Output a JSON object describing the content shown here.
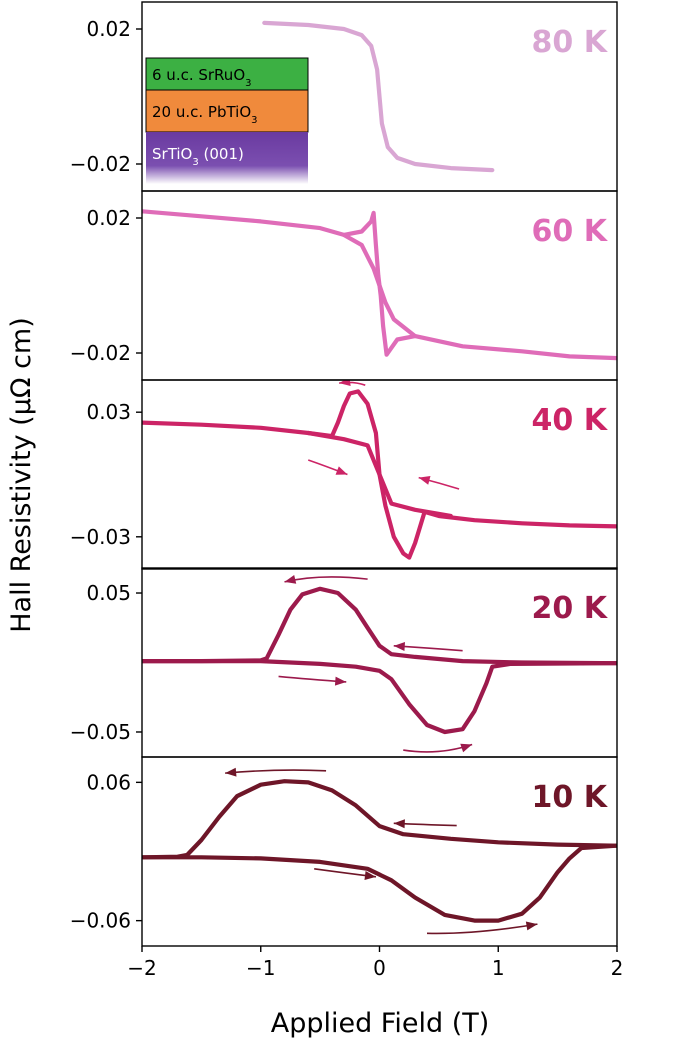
{
  "figure": {
    "ylabel": "Hall Resistivity (μΩ cm)",
    "xlabel": "Applied Field (T)"
  },
  "inset": {
    "layers": [
      {
        "label": "6 u.c. SrRuO",
        "sub": "3",
        "color": "#3cb043",
        "text_color": "#000000"
      },
      {
        "label": "20 u.c. PbTiO",
        "sub": "3",
        "color": "#f08a3c",
        "text_color": "#000000"
      },
      {
        "label": "SrTiO",
        "sub": "3",
        "suffix": " (001)",
        "color": "#6a3aa0",
        "text_color": "#ffffff"
      }
    ]
  },
  "chart_data": [
    {
      "type": "line",
      "temperature": "80 K",
      "color": "#d9a6d3",
      "xlim": [
        -2,
        2
      ],
      "ylim": [
        -0.028,
        0.028
      ],
      "yticks": [
        0.02,
        -0.02
      ],
      "yticklabels": [
        "0.02",
        "−0.02"
      ],
      "series": [
        {
          "points": [
            [
              -0.97,
              0.0218
            ],
            [
              -0.6,
              0.0212
            ],
            [
              -0.3,
              0.02
            ],
            [
              -0.15,
              0.0182
            ],
            [
              -0.07,
              0.015
            ],
            [
              -0.02,
              0.008
            ],
            [
              0.0,
              0.0
            ],
            [
              0.02,
              -0.008
            ],
            [
              0.07,
              -0.015
            ],
            [
              0.15,
              -0.0182
            ],
            [
              0.3,
              -0.02
            ],
            [
              0.6,
              -0.0212
            ],
            [
              0.95,
              -0.0218
            ]
          ]
        }
      ],
      "arrows": []
    },
    {
      "type": "line",
      "temperature": "60 K",
      "color": "#df6cb8",
      "xlim": [
        -2,
        2
      ],
      "ylim": [
        -0.028,
        0.028
      ],
      "yticks": [
        0.02,
        -0.02
      ],
      "yticklabels": [
        "0.02",
        "−0.02"
      ],
      "series": [
        {
          "points": [
            [
              -2.0,
              0.022
            ],
            [
              -1.5,
              0.0205
            ],
            [
              -1.0,
              0.019
            ],
            [
              -0.5,
              0.017
            ],
            [
              -0.3,
              0.015
            ],
            [
              -0.15,
              0.012
            ],
            [
              -0.05,
              0.005
            ],
            [
              0.0,
              0.0
            ],
            [
              0.05,
              -0.005
            ],
            [
              0.12,
              -0.01
            ],
            [
              0.3,
              -0.015
            ],
            [
              0.7,
              -0.018
            ],
            [
              1.2,
              -0.0195
            ],
            [
              1.6,
              -0.021
            ],
            [
              2.0,
              -0.0215
            ]
          ]
        },
        {
          "points": [
            [
              -0.3,
              0.015
            ],
            [
              -0.15,
              0.016
            ],
            [
              -0.07,
              0.019
            ],
            [
              -0.05,
              0.0215
            ],
            [
              -0.03,
              0.012
            ],
            [
              -0.01,
              0.003
            ],
            [
              0.01,
              -0.003
            ],
            [
              0.03,
              -0.012
            ],
            [
              0.06,
              -0.0205
            ],
            [
              0.09,
              -0.019
            ],
            [
              0.15,
              -0.016
            ],
            [
              0.3,
              -0.015
            ]
          ]
        }
      ],
      "arrows": []
    },
    {
      "type": "line",
      "temperature": "40 K",
      "color": "#cc2466",
      "xlim": [
        -2,
        2
      ],
      "ylim": [
        -0.0455,
        0.0455
      ],
      "yticks": [
        0.03,
        -0.03
      ],
      "yticklabels": [
        "0.03",
        "−0.03"
      ],
      "series": [
        {
          "points": [
            [
              -2.0,
              0.025
            ],
            [
              -1.5,
              0.024
            ],
            [
              -1.0,
              0.0225
            ],
            [
              -0.6,
              0.02
            ],
            [
              -0.4,
              0.0185
            ],
            [
              -0.4,
              0.0185
            ],
            [
              -0.35,
              0.025
            ],
            [
              -0.3,
              0.033
            ],
            [
              -0.25,
              0.039
            ],
            [
              -0.18,
              0.04
            ],
            [
              -0.1,
              0.034
            ],
            [
              -0.03,
              0.02
            ],
            [
              0.0,
              0.0
            ],
            [
              0.05,
              -0.015
            ],
            [
              0.12,
              -0.03
            ],
            [
              0.2,
              -0.038
            ],
            [
              0.25,
              -0.04
            ],
            [
              0.3,
              -0.033
            ],
            [
              0.38,
              -0.018
            ],
            [
              0.5,
              -0.02
            ],
            [
              0.8,
              -0.022
            ],
            [
              1.2,
              -0.0235
            ],
            [
              1.6,
              -0.0245
            ],
            [
              2.0,
              -0.025
            ]
          ]
        },
        {
          "points": [
            [
              -0.6,
              0.02
            ],
            [
              -0.3,
              0.017
            ],
            [
              -0.1,
              0.014
            ],
            [
              0.0,
              0.0
            ],
            [
              0.1,
              -0.014
            ],
            [
              0.3,
              -0.017
            ],
            [
              0.6,
              -0.02
            ]
          ]
        }
      ],
      "arrows": [
        {
          "pts": [
            [
              -0.12,
              0.043
            ],
            [
              -0.22,
              0.045
            ],
            [
              -0.34,
              0.044
            ]
          ]
        },
        {
          "pts": [
            [
              -0.6,
              0.007
            ],
            [
              -0.45,
              0.004
            ],
            [
              -0.27,
              0.0
            ]
          ]
        },
        {
          "pts": [
            [
              0.67,
              -0.007
            ],
            [
              0.5,
              -0.004
            ],
            [
              0.33,
              -0.0015
            ]
          ]
        }
      ]
    },
    {
      "type": "line",
      "temperature": "20 K",
      "color": "#9c1a4c",
      "xlim": [
        -2,
        2
      ],
      "ylim": [
        -0.068,
        0.068
      ],
      "yticks": [
        0.05,
        -0.05
      ],
      "yticklabels": [
        "0.05",
        "−0.05"
      ],
      "series": [
        {
          "points": [
            [
              -2.0,
              0.001
            ],
            [
              -1.5,
              0.001
            ],
            [
              -1.0,
              0.0015
            ],
            [
              -0.95,
              0.003
            ],
            [
              -0.85,
              0.02
            ],
            [
              -0.75,
              0.038
            ],
            [
              -0.65,
              0.049
            ],
            [
              -0.5,
              0.053
            ],
            [
              -0.35,
              0.05
            ],
            [
              -0.2,
              0.038
            ],
            [
              -0.1,
              0.025
            ],
            [
              0.0,
              0.012
            ],
            [
              0.1,
              0.006
            ],
            [
              0.3,
              0.004
            ],
            [
              0.7,
              0.001
            ],
            [
              1.2,
              0.0
            ],
            [
              2.0,
              -0.0005
            ]
          ]
        },
        {
          "points": [
            [
              -2.0,
              0.001
            ],
            [
              -1.5,
              0.001
            ],
            [
              -1.0,
              0.001
            ],
            [
              -0.5,
              -0.001
            ],
            [
              -0.2,
              -0.003
            ],
            [
              0.0,
              -0.006
            ],
            [
              0.1,
              -0.012
            ],
            [
              0.25,
              -0.03
            ],
            [
              0.4,
              -0.045
            ],
            [
              0.55,
              -0.05
            ],
            [
              0.7,
              -0.048
            ],
            [
              0.8,
              -0.035
            ],
            [
              0.9,
              -0.015
            ],
            [
              0.95,
              -0.003
            ],
            [
              1.1,
              -0.001
            ],
            [
              2.0,
              -0.0005
            ]
          ]
        }
      ],
      "arrows": [
        {
          "pts": [
            [
              -0.1,
              0.06
            ],
            [
              -0.5,
              0.064
            ],
            [
              -0.8,
              0.058
            ]
          ]
        },
        {
          "pts": [
            [
              0.7,
              0.0085
            ],
            [
              0.4,
              0.0105
            ],
            [
              0.12,
              0.012
            ]
          ]
        },
        {
          "pts": [
            [
              -0.85,
              -0.01
            ],
            [
              -0.6,
              -0.012
            ],
            [
              -0.28,
              -0.014
            ]
          ]
        },
        {
          "pts": [
            [
              0.2,
              -0.063
            ],
            [
              0.5,
              -0.067
            ],
            [
              0.78,
              -0.059
            ]
          ]
        }
      ]
    },
    {
      "type": "line",
      "temperature": "10 K",
      "color": "#6e1628",
      "xlim": [
        -2,
        2
      ],
      "ylim": [
        -0.082,
        0.082
      ],
      "yticks": [
        0.06,
        -0.06
      ],
      "yticklabels": [
        "0.06",
        "−0.06"
      ],
      "series": [
        {
          "points": [
            [
              -2.0,
              -0.005
            ],
            [
              -1.7,
              -0.0045
            ],
            [
              -1.62,
              -0.003
            ],
            [
              -1.5,
              0.01
            ],
            [
              -1.35,
              0.03
            ],
            [
              -1.2,
              0.048
            ],
            [
              -1.0,
              0.058
            ],
            [
              -0.8,
              0.061
            ],
            [
              -0.6,
              0.06
            ],
            [
              -0.4,
              0.053
            ],
            [
              -0.2,
              0.04
            ],
            [
              0.0,
              0.022
            ],
            [
              0.2,
              0.015
            ],
            [
              0.6,
              0.011
            ],
            [
              1.0,
              0.008
            ],
            [
              1.5,
              0.006
            ],
            [
              2.0,
              0.005
            ]
          ]
        },
        {
          "points": [
            [
              -2.0,
              -0.005
            ],
            [
              -1.5,
              -0.005
            ],
            [
              -1.0,
              -0.006
            ],
            [
              -0.5,
              -0.009
            ],
            [
              -0.1,
              -0.015
            ],
            [
              0.1,
              -0.025
            ],
            [
              0.3,
              -0.04
            ],
            [
              0.55,
              -0.055
            ],
            [
              0.8,
              -0.06
            ],
            [
              1.0,
              -0.06
            ],
            [
              1.2,
              -0.054
            ],
            [
              1.35,
              -0.04
            ],
            [
              1.5,
              -0.018
            ],
            [
              1.6,
              -0.006
            ],
            [
              1.7,
              0.003
            ],
            [
              2.0,
              0.005
            ]
          ]
        }
      ],
      "arrows": [
        {
          "pts": [
            [
              -0.45,
              0.07
            ],
            [
              -0.85,
              0.072
            ],
            [
              -1.3,
              0.068
            ]
          ]
        },
        {
          "pts": [
            [
              0.65,
              0.0225
            ],
            [
              0.35,
              0.0235
            ],
            [
              0.12,
              0.0245
            ]
          ]
        },
        {
          "pts": [
            [
              -0.55,
              -0.015
            ],
            [
              -0.3,
              -0.0185
            ],
            [
              -0.03,
              -0.022
            ]
          ]
        },
        {
          "pts": [
            [
              0.4,
              -0.071
            ],
            [
              0.8,
              -0.072
            ],
            [
              1.33,
              -0.063
            ]
          ]
        }
      ]
    }
  ]
}
